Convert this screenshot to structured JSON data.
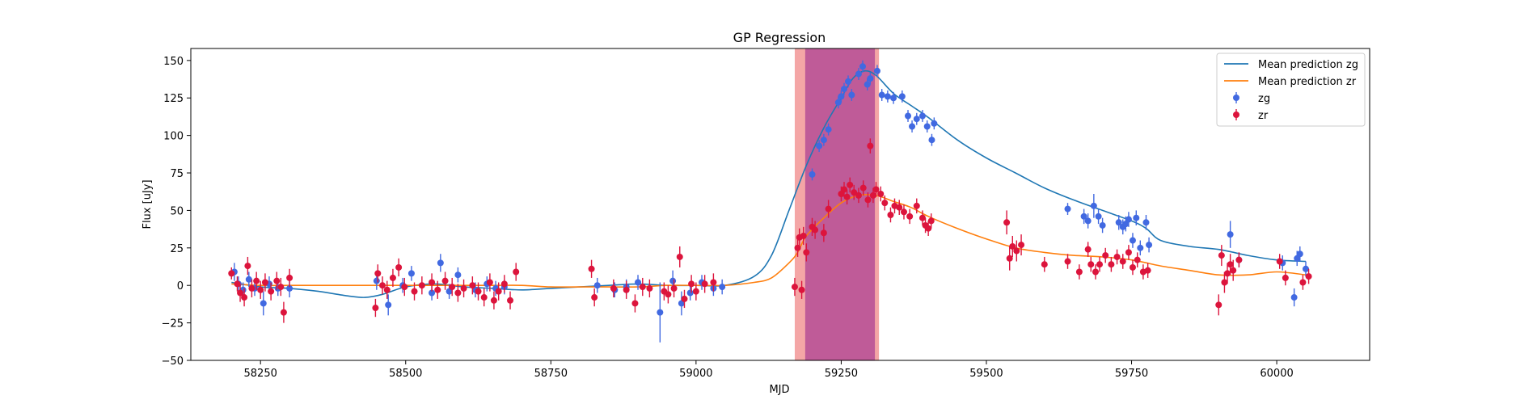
{
  "chart_data": {
    "type": "scatter",
    "title": "GP Regression",
    "xlabel": "MJD",
    "ylabel": "Flux [uJy]",
    "xlim": [
      58130,
      60160
    ],
    "ylim": [
      -50,
      158
    ],
    "xticks": [
      58250,
      58500,
      58750,
      59000,
      59250,
      59500,
      59750,
      60000
    ],
    "yticks": [
      -50,
      -25,
      0,
      25,
      50,
      75,
      100,
      125,
      150
    ],
    "legend_position": "top-right",
    "colors": {
      "zg_line": "#1f77b4",
      "zr_line": "#ff7f0e",
      "zg_points": "#4169e1",
      "zr_points": "#dc143c",
      "span_red": "#f08080",
      "span_purple": "#9b2a8f"
    },
    "spans": [
      {
        "x0": 59170,
        "x1": 59315,
        "color": "red",
        "alpha": 0.7
      },
      {
        "x0": 59188,
        "x1": 59308,
        "color": "purple",
        "alpha": 0.6
      }
    ],
    "series": [
      {
        "name": "Mean prediction zg",
        "kind": "line",
        "x": [
          58200,
          58250,
          58300,
          58350,
          58400,
          58430,
          58460,
          58500,
          58550,
          58600,
          58650,
          58700,
          58750,
          58800,
          58850,
          58900,
          58950,
          59000,
          59050,
          59100,
          59130,
          59160,
          59190,
          59220,
          59250,
          59270,
          59290,
          59310,
          59340,
          59370,
          59400,
          59450,
          59500,
          59550,
          59600,
          59650,
          59700,
          59750,
          59775,
          59800,
          59850,
          59900,
          59950,
          60000,
          60050
        ],
        "y": [
          2,
          -1,
          -2,
          -4,
          -7,
          -8,
          -6,
          -1,
          1,
          -1,
          -2,
          -3,
          -2,
          -1,
          0,
          1,
          0,
          0,
          0,
          6,
          20,
          50,
          80,
          105,
          125,
          138,
          143,
          140,
          128,
          120,
          112,
          97,
          85,
          75,
          65,
          57,
          50,
          43,
          38,
          30,
          26,
          24,
          20,
          17,
          16
        ]
      },
      {
        "name": "Mean prediction zr",
        "kind": "line",
        "x": [
          58200,
          58250,
          58300,
          58350,
          58400,
          58450,
          58500,
          58550,
          58600,
          58650,
          58700,
          58750,
          58800,
          58850,
          58900,
          58950,
          59000,
          59050,
          59100,
          59130,
          59160,
          59175,
          59190,
          59220,
          59250,
          59280,
          59310,
          59340,
          59370,
          59400,
          59450,
          59500,
          59550,
          59600,
          59650,
          59700,
          59750,
          59800,
          59850,
          59900,
          59950,
          60000,
          60050
        ],
        "y": [
          1,
          0,
          0,
          0,
          0,
          0,
          0,
          0,
          0,
          0,
          0,
          -1,
          -1,
          -1,
          -1,
          0,
          0,
          0,
          2,
          5,
          15,
          22,
          33,
          45,
          55,
          60,
          60,
          56,
          52,
          46,
          38,
          31,
          25,
          22,
          20,
          19,
          17,
          13,
          10,
          7,
          7,
          9,
          7
        ]
      },
      {
        "name": "zg",
        "kind": "errorbar",
        "points": [
          [
            58205,
            9,
            6
          ],
          [
            58212,
            1,
            5
          ],
          [
            58220,
            -3,
            5
          ],
          [
            58230,
            4,
            5
          ],
          [
            58240,
            -2,
            5
          ],
          [
            58255,
            -12,
            8
          ],
          [
            58265,
            1,
            5
          ],
          [
            58280,
            -2,
            5
          ],
          [
            58300,
            -2,
            6
          ],
          [
            58450,
            3,
            6
          ],
          [
            58470,
            -13,
            7
          ],
          [
            58495,
            0,
            5
          ],
          [
            58510,
            8,
            5
          ],
          [
            58545,
            -5,
            5
          ],
          [
            58560,
            15,
            6
          ],
          [
            58575,
            -4,
            5
          ],
          [
            58590,
            7,
            5
          ],
          [
            58620,
            -3,
            5
          ],
          [
            58640,
            1,
            5
          ],
          [
            58655,
            -2,
            5
          ],
          [
            58670,
            -1,
            5
          ],
          [
            58830,
            0,
            5
          ],
          [
            58860,
            -3,
            5
          ],
          [
            58880,
            -1,
            5
          ],
          [
            58900,
            2,
            5
          ],
          [
            58938,
            -18,
            20
          ],
          [
            58960,
            3,
            7
          ],
          [
            58975,
            -12,
            8
          ],
          [
            58990,
            -5,
            5
          ],
          [
            59010,
            2,
            5
          ],
          [
            59030,
            -2,
            5
          ],
          [
            59045,
            -1,
            5
          ],
          [
            59200,
            74,
            4
          ],
          [
            59212,
            93,
            4
          ],
          [
            59220,
            97,
            4
          ],
          [
            59228,
            104,
            4
          ],
          [
            59245,
            122,
            4
          ],
          [
            59250,
            126,
            4
          ],
          [
            59255,
            131,
            4
          ],
          [
            59262,
            136,
            4
          ],
          [
            59268,
            127,
            4
          ],
          [
            59280,
            141,
            4
          ],
          [
            59287,
            146,
            4
          ],
          [
            59295,
            134,
            4
          ],
          [
            59300,
            138,
            4
          ],
          [
            59312,
            143,
            4
          ],
          [
            59320,
            127,
            4
          ],
          [
            59330,
            126,
            4
          ],
          [
            59340,
            125,
            4
          ],
          [
            59355,
            126,
            4
          ],
          [
            59365,
            113,
            4
          ],
          [
            59372,
            106,
            4
          ],
          [
            59380,
            111,
            4
          ],
          [
            59390,
            113,
            4
          ],
          [
            59398,
            106,
            4
          ],
          [
            59406,
            97,
            4
          ],
          [
            59410,
            108,
            4
          ],
          [
            59640,
            51,
            4
          ],
          [
            59668,
            46,
            5
          ],
          [
            59675,
            43,
            5
          ],
          [
            59685,
            53,
            8
          ],
          [
            59693,
            46,
            5
          ],
          [
            59700,
            40,
            5
          ],
          [
            59728,
            42,
            5
          ],
          [
            59735,
            39,
            5
          ],
          [
            59740,
            41,
            5
          ],
          [
            59745,
            44,
            5
          ],
          [
            59752,
            30,
            5
          ],
          [
            59758,
            45,
            5
          ],
          [
            59765,
            25,
            5
          ],
          [
            59775,
            42,
            5
          ],
          [
            59780,
            27,
            5
          ],
          [
            59920,
            34,
            9
          ],
          [
            59935,
            17,
            5
          ],
          [
            60010,
            15,
            5
          ],
          [
            60030,
            -8,
            6
          ],
          [
            60035,
            18,
            5
          ],
          [
            60040,
            21,
            5
          ],
          [
            60050,
            11,
            5
          ]
        ]
      },
      {
        "name": "zr",
        "kind": "errorbar",
        "points": [
          [
            58200,
            8,
            4
          ],
          [
            58210,
            1,
            5
          ],
          [
            58215,
            -5,
            6
          ],
          [
            58222,
            -8,
            6
          ],
          [
            58228,
            13,
            6
          ],
          [
            58235,
            -2,
            6
          ],
          [
            58243,
            3,
            6
          ],
          [
            58250,
            -3,
            6
          ],
          [
            58258,
            2,
            6
          ],
          [
            58268,
            -4,
            6
          ],
          [
            58278,
            3,
            6
          ],
          [
            58285,
            -1,
            6
          ],
          [
            58290,
            -18,
            7
          ],
          [
            58300,
            5,
            6
          ],
          [
            58448,
            -15,
            6
          ],
          [
            58452,
            8,
            6
          ],
          [
            58460,
            0,
            6
          ],
          [
            58468,
            -3,
            6
          ],
          [
            58478,
            5,
            6
          ],
          [
            58488,
            12,
            6
          ],
          [
            58498,
            -1,
            6
          ],
          [
            58515,
            -4,
            6
          ],
          [
            58528,
            0,
            6
          ],
          [
            58545,
            2,
            6
          ],
          [
            58555,
            -3,
            6
          ],
          [
            58568,
            3,
            6
          ],
          [
            58580,
            -1,
            6
          ],
          [
            58590,
            -5,
            6
          ],
          [
            58600,
            -2,
            6
          ],
          [
            58615,
            0,
            6
          ],
          [
            58625,
            -4,
            6
          ],
          [
            58635,
            -8,
            6
          ],
          [
            58645,
            2,
            6
          ],
          [
            58652,
            -10,
            6
          ],
          [
            58660,
            -4,
            6
          ],
          [
            58670,
            1,
            6
          ],
          [
            58680,
            -10,
            6
          ],
          [
            58690,
            9,
            6
          ],
          [
            58820,
            11,
            6
          ],
          [
            58825,
            -8,
            6
          ],
          [
            58858,
            -2,
            6
          ],
          [
            58880,
            -3,
            6
          ],
          [
            58895,
            -12,
            6
          ],
          [
            58908,
            -1,
            6
          ],
          [
            58920,
            -2,
            6
          ],
          [
            58945,
            -4,
            6
          ],
          [
            58952,
            -6,
            6
          ],
          [
            58962,
            -2,
            6
          ],
          [
            58972,
            19,
            7
          ],
          [
            58980,
            -9,
            6
          ],
          [
            58992,
            1,
            6
          ],
          [
            59000,
            -4,
            6
          ],
          [
            59015,
            1,
            6
          ],
          [
            59030,
            2,
            6
          ],
          [
            59170,
            -1,
            6
          ],
          [
            59175,
            25,
            6
          ],
          [
            59178,
            32,
            6
          ],
          [
            59182,
            -3,
            6
          ],
          [
            59185,
            33,
            6
          ],
          [
            59190,
            22,
            6
          ],
          [
            59200,
            39,
            6
          ],
          [
            59205,
            37,
            6
          ],
          [
            59220,
            35,
            6
          ],
          [
            59228,
            51,
            6
          ],
          [
            59250,
            61,
            5
          ],
          [
            59255,
            64,
            5
          ],
          [
            59260,
            59,
            5
          ],
          [
            59265,
            67,
            5
          ],
          [
            59272,
            62,
            5
          ],
          [
            59280,
            60,
            5
          ],
          [
            59288,
            65,
            5
          ],
          [
            59296,
            57,
            5
          ],
          [
            59300,
            93,
            5
          ],
          [
            59305,
            60,
            5
          ],
          [
            59310,
            64,
            5
          ],
          [
            59318,
            61,
            5
          ],
          [
            59325,
            55,
            5
          ],
          [
            59335,
            47,
            5
          ],
          [
            59342,
            53,
            5
          ],
          [
            59350,
            52,
            5
          ],
          [
            59358,
            49,
            5
          ],
          [
            59368,
            46,
            5
          ],
          [
            59380,
            53,
            5
          ],
          [
            59390,
            45,
            5
          ],
          [
            59395,
            40,
            5
          ],
          [
            59400,
            38,
            5
          ],
          [
            59405,
            43,
            5
          ],
          [
            59535,
            42,
            8
          ],
          [
            59540,
            18,
            8
          ],
          [
            59545,
            26,
            7
          ],
          [
            59552,
            23,
            7
          ],
          [
            59560,
            27,
            7
          ],
          [
            59600,
            14,
            5
          ],
          [
            59640,
            16,
            5
          ],
          [
            59660,
            9,
            5
          ],
          [
            59675,
            24,
            5
          ],
          [
            59680,
            14,
            5
          ],
          [
            59688,
            9,
            5
          ],
          [
            59695,
            14,
            5
          ],
          [
            59705,
            20,
            5
          ],
          [
            59715,
            14,
            5
          ],
          [
            59725,
            19,
            5
          ],
          [
            59735,
            16,
            5
          ],
          [
            59745,
            22,
            5
          ],
          [
            59752,
            12,
            5
          ],
          [
            59760,
            17,
            5
          ],
          [
            59770,
            9,
            5
          ],
          [
            59778,
            10,
            5
          ],
          [
            59900,
            -13,
            7
          ],
          [
            59905,
            20,
            7
          ],
          [
            59910,
            2,
            7
          ],
          [
            59915,
            8,
            7
          ],
          [
            59920,
            14,
            7
          ],
          [
            59925,
            10,
            7
          ],
          [
            59935,
            17,
            5
          ],
          [
            60005,
            16,
            5
          ],
          [
            60015,
            5,
            5
          ],
          [
            60045,
            2,
            5
          ],
          [
            60055,
            6,
            5
          ]
        ]
      }
    ],
    "legend": [
      {
        "label": "Mean prediction zg",
        "kind": "line",
        "color": "#1f77b4"
      },
      {
        "label": "Mean prediction zr",
        "kind": "line",
        "color": "#ff7f0e"
      },
      {
        "label": "zg",
        "kind": "marker",
        "color": "#4169e1"
      },
      {
        "label": "zr",
        "kind": "marker",
        "color": "#dc143c"
      }
    ]
  }
}
